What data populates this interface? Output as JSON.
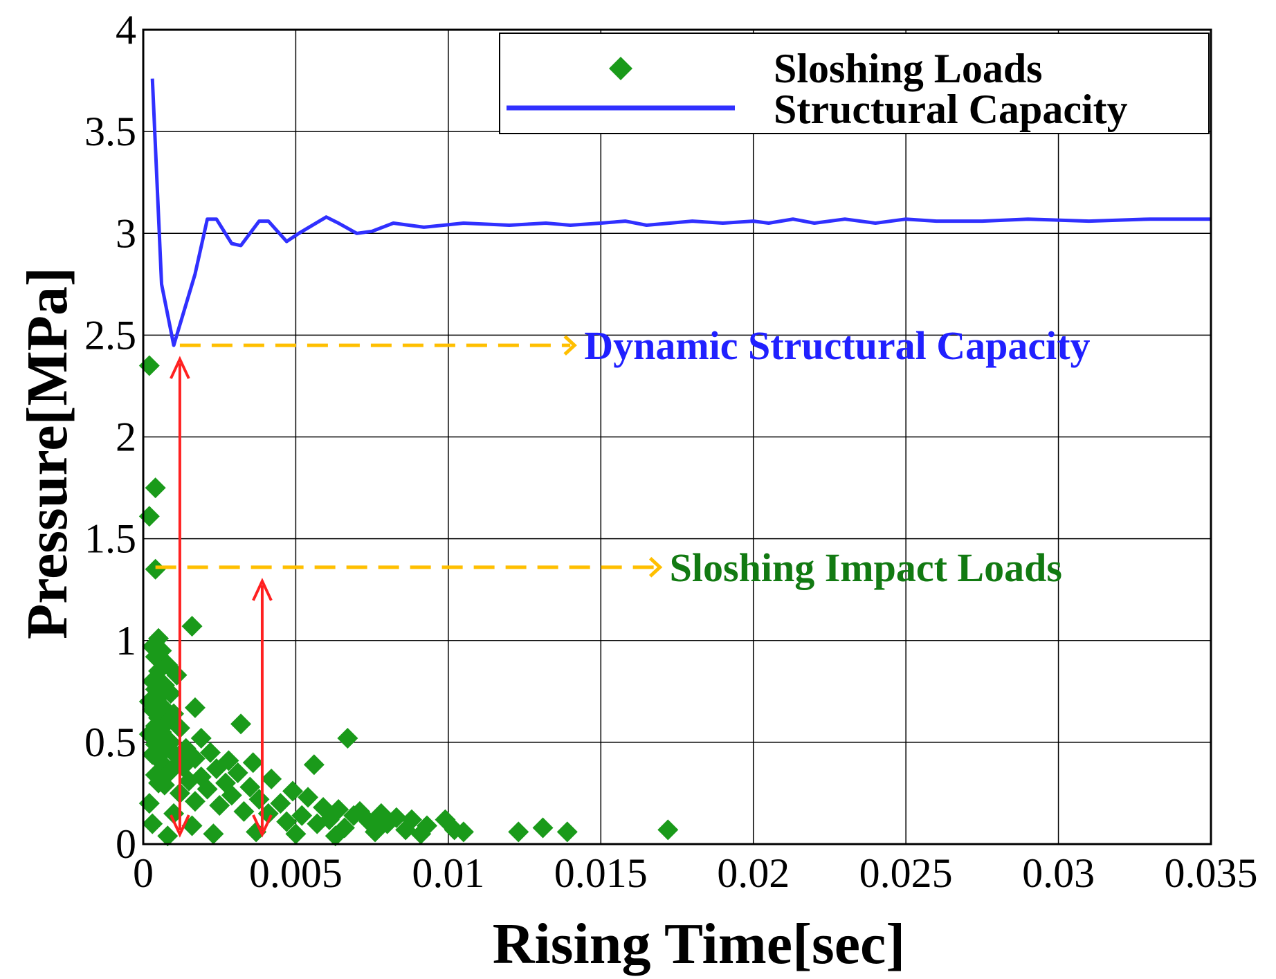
{
  "chart_data": {
    "type": "scatter",
    "xlabel": "Rising Time[sec]",
    "ylabel": "Pressure[MPa]",
    "xlim": [
      0,
      0.035
    ],
    "ylim": [
      0,
      4
    ],
    "x_ticks": [
      "0",
      "0.005",
      "0.01",
      "0.015",
      "0.02",
      "0.025",
      "0.03",
      "0.035"
    ],
    "y_ticks": [
      "0",
      "0.5",
      "1",
      "1.5",
      "2",
      "2.5",
      "3",
      "3.5",
      "4"
    ],
    "grid": true,
    "legend_position": "top-right",
    "series": [
      {
        "name": "Sloshing Loads",
        "kind": "scatter",
        "marker": "diamond",
        "color": "#1a9a1a",
        "points": [
          [
            0.0002,
            2.35
          ],
          [
            0.0004,
            1.75
          ],
          [
            0.0002,
            1.61
          ],
          [
            0.0004,
            1.35
          ],
          [
            0.0016,
            1.07
          ],
          [
            0.0005,
            1.01
          ],
          [
            0.0003,
            0.97
          ],
          [
            0.0006,
            0.95
          ],
          [
            0.0004,
            0.92
          ],
          [
            0.0008,
            0.88
          ],
          [
            0.0005,
            0.85
          ],
          [
            0.0011,
            0.83
          ],
          [
            0.0003,
            0.8
          ],
          [
            0.0007,
            0.78
          ],
          [
            0.0004,
            0.76
          ],
          [
            0.0009,
            0.74
          ],
          [
            0.0005,
            0.72
          ],
          [
            0.0002,
            0.7
          ],
          [
            0.0006,
            0.68
          ],
          [
            0.0017,
            0.67
          ],
          [
            0.0003,
            0.66
          ],
          [
            0.001,
            0.64
          ],
          [
            0.0005,
            0.62
          ],
          [
            0.0008,
            0.6
          ],
          [
            0.0032,
            0.59
          ],
          [
            0.0004,
            0.58
          ],
          [
            0.0012,
            0.57
          ],
          [
            0.0006,
            0.55
          ],
          [
            0.0002,
            0.54
          ],
          [
            0.0019,
            0.52
          ],
          [
            0.0067,
            0.52
          ],
          [
            0.0009,
            0.5
          ],
          [
            0.0004,
            0.49
          ],
          [
            0.0014,
            0.47
          ],
          [
            0.0007,
            0.46
          ],
          [
            0.0022,
            0.45
          ],
          [
            0.0003,
            0.44
          ],
          [
            0.0011,
            0.43
          ],
          [
            0.0017,
            0.42
          ],
          [
            0.0028,
            0.41
          ],
          [
            0.0006,
            0.4
          ],
          [
            0.0036,
            0.4
          ],
          [
            0.0056,
            0.39
          ],
          [
            0.0013,
            0.38
          ],
          [
            0.0024,
            0.37
          ],
          [
            0.0009,
            0.36
          ],
          [
            0.0031,
            0.35
          ],
          [
            0.0004,
            0.34
          ],
          [
            0.0019,
            0.33
          ],
          [
            0.0042,
            0.32
          ],
          [
            0.0015,
            0.31
          ],
          [
            0.0027,
            0.3
          ],
          [
            0.0007,
            0.29
          ],
          [
            0.0035,
            0.28
          ],
          [
            0.0021,
            0.27
          ],
          [
            0.0049,
            0.26
          ],
          [
            0.0012,
            0.25
          ],
          [
            0.0029,
            0.24
          ],
          [
            0.0054,
            0.23
          ],
          [
            0.0038,
            0.22
          ],
          [
            0.0017,
            0.21
          ],
          [
            0.0045,
            0.2
          ],
          [
            0.0025,
            0.19
          ],
          [
            0.0059,
            0.18
          ],
          [
            0.0064,
            0.17
          ],
          [
            0.0033,
            0.16
          ],
          [
            0.0071,
            0.16
          ],
          [
            0.0041,
            0.15
          ],
          [
            0.0078,
            0.15
          ],
          [
            0.0052,
            0.14
          ],
          [
            0.0069,
            0.14
          ],
          [
            0.0083,
            0.13
          ],
          [
            0.0061,
            0.12
          ],
          [
            0.0088,
            0.12
          ],
          [
            0.0047,
            0.11
          ],
          [
            0.0074,
            0.11
          ],
          [
            0.008,
            0.1
          ],
          [
            0.0057,
            0.1
          ],
          [
            0.0093,
            0.09
          ],
          [
            0.0066,
            0.08
          ],
          [
            0.0099,
            0.12
          ],
          [
            0.0086,
            0.07
          ],
          [
            0.0102,
            0.07
          ],
          [
            0.0076,
            0.06
          ],
          [
            0.0091,
            0.05
          ],
          [
            0.0105,
            0.06
          ],
          [
            0.0123,
            0.06
          ],
          [
            0.0131,
            0.08
          ],
          [
            0.0139,
            0.06
          ],
          [
            0.0172,
            0.07
          ],
          [
            0.0008,
            0.04
          ],
          [
            0.0023,
            0.05
          ],
          [
            0.0037,
            0.06
          ],
          [
            0.005,
            0.05
          ],
          [
            0.0063,
            0.04
          ],
          [
            0.0002,
            0.2
          ],
          [
            0.0003,
            0.1
          ],
          [
            0.0005,
            0.3
          ],
          [
            0.001,
            0.15
          ],
          [
            0.0016,
            0.09
          ]
        ]
      },
      {
        "name": "Structural Capacity",
        "kind": "line",
        "color": "#3030ff",
        "points": [
          [
            0.0003,
            3.76
          ],
          [
            0.0006,
            2.75
          ],
          [
            0.001,
            2.45
          ],
          [
            0.0017,
            2.8
          ],
          [
            0.0021,
            3.07
          ],
          [
            0.0024,
            3.07
          ],
          [
            0.0029,
            2.95
          ],
          [
            0.0032,
            2.94
          ],
          [
            0.0038,
            3.06
          ],
          [
            0.0041,
            3.06
          ],
          [
            0.0047,
            2.96
          ],
          [
            0.0051,
            3.0
          ],
          [
            0.006,
            3.08
          ],
          [
            0.0064,
            3.05
          ],
          [
            0.007,
            3.0
          ],
          [
            0.0075,
            3.01
          ],
          [
            0.0082,
            3.05
          ],
          [
            0.0092,
            3.03
          ],
          [
            0.0105,
            3.05
          ],
          [
            0.012,
            3.04
          ],
          [
            0.0132,
            3.05
          ],
          [
            0.014,
            3.04
          ],
          [
            0.015,
            3.05
          ],
          [
            0.0158,
            3.06
          ],
          [
            0.0165,
            3.04
          ],
          [
            0.018,
            3.06
          ],
          [
            0.019,
            3.05
          ],
          [
            0.02,
            3.06
          ],
          [
            0.0205,
            3.05
          ],
          [
            0.0213,
            3.07
          ],
          [
            0.022,
            3.05
          ],
          [
            0.023,
            3.07
          ],
          [
            0.024,
            3.05
          ],
          [
            0.025,
            3.07
          ],
          [
            0.026,
            3.06
          ],
          [
            0.0275,
            3.06
          ],
          [
            0.029,
            3.07
          ],
          [
            0.031,
            3.06
          ],
          [
            0.033,
            3.07
          ],
          [
            0.035,
            3.07
          ]
        ]
      }
    ],
    "annotations": [
      {
        "text": "Dynamic Structural Capacity",
        "color": "#2020ff",
        "y": 2.45,
        "x_from": 0.0012,
        "x_to": 0.014,
        "vertical_x": 0.0012
      },
      {
        "text": "Sloshing Impact Loads",
        "color": "#127a12",
        "y": 1.36,
        "x_from": 0.0004,
        "x_to": 0.0168,
        "vertical_x": 0.0039
      }
    ],
    "guide_colors": {
      "dashed": "#ffbf00",
      "arrow": "#ff2020"
    }
  }
}
